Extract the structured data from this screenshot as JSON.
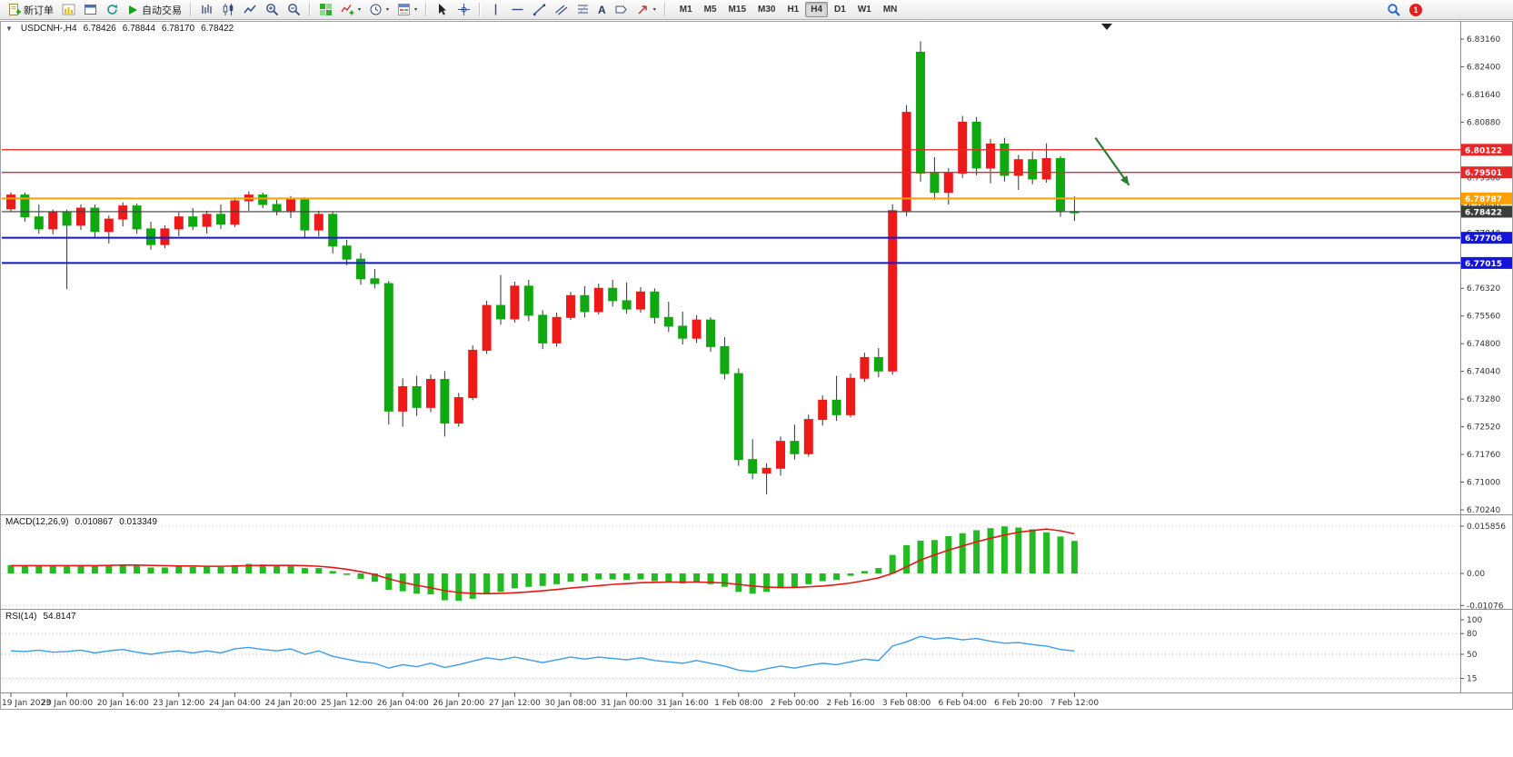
{
  "toolbar": {
    "new_order_label": "新订单",
    "auto_trading_label": "自动交易",
    "timeframes": [
      "M1",
      "M5",
      "M15",
      "M30",
      "H1",
      "H4",
      "D1",
      "W1",
      "MN"
    ],
    "active_timeframe": "H4",
    "notification_count": "1"
  },
  "icons": {
    "dropdown": "▾",
    "expander": "▼",
    "text_tool": "A"
  },
  "chart": {
    "title_symbol": "USDCNH-,H4",
    "open": "6.78426",
    "high": "6.78844",
    "low": "6.78170",
    "close": "6.78422"
  },
  "chart_data": {
    "type": "candlestick",
    "symbol": "USDCNH-",
    "timeframe": "H4",
    "x": {
      "step_bars": 4,
      "labels": [
        "19 Jan 2023",
        "20 Jan 00:00",
        "20 Jan 16:00",
        "23 Jan 12:00",
        "24 Jan 04:00",
        "24 Jan 20:00",
        "25 Jan 12:00",
        "26 Jan 04:00",
        "26 Jan 20:00",
        "27 Jan 12:00",
        "30 Jan 08:00",
        "31 Jan 00:00",
        "31 Jan 16:00",
        "1 Feb 08:00",
        "2 Feb 00:00",
        "2 Feb 16:00",
        "3 Feb 08:00",
        "6 Feb 04:00",
        "6 Feb 20:00",
        "7 Feb 12:00"
      ]
    },
    "main": {
      "price_min": 6.7024,
      "price_max": 6.8316,
      "tick_step": 0.0076,
      "tick_labels": [
        "6.83160",
        "6.82400",
        "6.81640",
        "6.80880",
        "6.80120",
        "6.79360",
        "6.78600",
        "6.77840",
        "6.77080",
        "6.76320",
        "6.75560",
        "6.74800",
        "6.74040",
        "6.73280",
        "6.72520",
        "6.71760",
        "6.71000",
        "6.70240"
      ],
      "up_color": "#ee1a1a",
      "down_color": "#10a810",
      "candles": [
        [
          6.785,
          6.7895,
          6.7842,
          6.7888
        ],
        [
          6.7888,
          6.7895,
          6.7815,
          6.7828
        ],
        [
          6.7828,
          6.7862,
          6.7782,
          6.7795
        ],
        [
          6.7795,
          6.7848,
          6.778,
          6.784
        ],
        [
          6.784,
          6.7848,
          6.763,
          6.7805
        ],
        [
          6.7805,
          6.7862,
          6.7792,
          6.7852
        ],
        [
          6.7852,
          6.7862,
          6.7772,
          6.7788
        ],
        [
          6.7788,
          6.7832,
          6.7755,
          6.7822
        ],
        [
          6.7822,
          6.7868,
          6.7802,
          6.7858
        ],
        [
          6.7858,
          6.7865,
          6.7782,
          6.7795
        ],
        [
          6.7795,
          6.7815,
          6.7738,
          6.7752
        ],
        [
          6.7752,
          6.7805,
          6.7742,
          6.7795
        ],
        [
          6.7795,
          6.784,
          6.7775,
          6.7828
        ],
        [
          6.7828,
          6.7852,
          6.7792,
          6.7802
        ],
        [
          6.7802,
          6.7845,
          6.7782,
          6.7835
        ],
        [
          6.7835,
          6.7862,
          6.7795,
          6.7808
        ],
        [
          6.7808,
          6.7882,
          6.78,
          6.7872
        ],
        [
          6.7872,
          6.7898,
          6.7845,
          6.7888
        ],
        [
          6.7888,
          6.7895,
          6.7852,
          6.7862
        ],
        [
          6.7862,
          6.7875,
          6.7832,
          6.7845
        ],
        [
          6.7845,
          6.7885,
          6.7825,
          6.7875
        ],
        [
          6.7875,
          6.7882,
          6.7772,
          6.7792
        ],
        [
          6.7792,
          6.7845,
          6.7775,
          6.7835
        ],
        [
          6.7835,
          6.7842,
          6.7728,
          6.7748
        ],
        [
          6.7748,
          6.7765,
          6.7695,
          6.7712
        ],
        [
          6.7712,
          6.7728,
          6.7642,
          6.7658
        ],
        [
          6.7658,
          6.7685,
          6.7632,
          6.7645
        ],
        [
          6.7645,
          6.7652,
          6.7258,
          6.7295
        ],
        [
          6.7295,
          6.7385,
          6.7252,
          6.7362
        ],
        [
          6.7362,
          6.7392,
          6.7282,
          6.7305
        ],
        [
          6.7305,
          6.7395,
          6.7292,
          6.7382
        ],
        [
          6.7382,
          6.7405,
          6.7225,
          6.7262
        ],
        [
          6.7262,
          6.7345,
          6.7252,
          6.7332
        ],
        [
          6.7332,
          6.7475,
          6.7325,
          6.7462
        ],
        [
          6.7462,
          6.7598,
          6.7452,
          6.7585
        ],
        [
          6.7585,
          6.7668,
          6.7532,
          6.7548
        ],
        [
          6.7548,
          6.765,
          6.7538,
          6.7638
        ],
        [
          6.7638,
          6.7655,
          6.7542,
          6.7558
        ],
        [
          6.7558,
          6.7572,
          6.7465,
          6.7482
        ],
        [
          6.7482,
          6.7565,
          6.7472,
          6.7552
        ],
        [
          6.7552,
          6.7622,
          6.7545,
          6.7612
        ],
        [
          6.7612,
          6.7638,
          6.7552,
          6.7568
        ],
        [
          6.7568,
          6.7645,
          6.756,
          6.7632
        ],
        [
          6.7632,
          6.7655,
          6.7582,
          6.7598
        ],
        [
          6.7598,
          6.7648,
          6.7562,
          6.7575
        ],
        [
          6.7575,
          6.7635,
          6.7565,
          6.7622
        ],
        [
          6.7622,
          6.7632,
          6.7535,
          6.7552
        ],
        [
          6.7552,
          6.7595,
          6.7512,
          6.7528
        ],
        [
          6.7528,
          6.7568,
          6.7478,
          6.7495
        ],
        [
          6.7495,
          6.7558,
          6.7482,
          6.7545
        ],
        [
          6.7545,
          6.7552,
          6.7458,
          6.7472
        ],
        [
          6.7472,
          6.7498,
          6.7382,
          6.7398
        ],
        [
          6.7398,
          6.7412,
          6.7145,
          6.7162
        ],
        [
          6.7162,
          6.7218,
          6.7108,
          6.7125
        ],
        [
          6.7125,
          6.7152,
          6.7066,
          6.7138
        ],
        [
          6.7138,
          6.7225,
          6.7118,
          6.7212
        ],
        [
          6.7212,
          6.7258,
          6.7162,
          6.7178
        ],
        [
          6.7178,
          6.7285,
          6.717,
          6.7272
        ],
        [
          6.7272,
          6.7338,
          6.7255,
          6.7325
        ],
        [
          6.7325,
          6.7392,
          6.7268,
          6.7285
        ],
        [
          6.7285,
          6.7398,
          6.7278,
          6.7385
        ],
        [
          6.7385,
          6.7455,
          6.7375,
          6.7442
        ],
        [
          6.7442,
          6.7468,
          6.7388,
          6.7405
        ],
        [
          6.7405,
          6.7862,
          6.7395,
          6.7845
        ],
        [
          6.7845,
          6.8135,
          6.783,
          6.8115
        ],
        [
          6.828,
          6.831,
          6.7925,
          6.7948
        ],
        [
          6.7948,
          6.7992,
          6.7875,
          6.7895
        ],
        [
          6.7895,
          6.7962,
          6.7862,
          6.7948
        ],
        [
          6.7948,
          6.8105,
          6.7935,
          6.8088
        ],
        [
          6.8088,
          6.8102,
          6.7942,
          6.7962
        ],
        [
          6.7962,
          6.8042,
          6.792,
          6.8028
        ],
        [
          6.8028,
          6.8045,
          6.7925,
          6.7942
        ],
        [
          6.7942,
          6.7998,
          6.7902,
          6.7985
        ],
        [
          6.7985,
          6.8008,
          6.7918,
          6.7932
        ],
        [
          6.7932,
          6.803,
          6.7922,
          6.7988
        ],
        [
          6.7988,
          6.7995,
          6.7828,
          6.7845
        ],
        [
          6.78426,
          6.78844,
          6.7817,
          6.78422
        ]
      ],
      "levels": [
        {
          "value": "6.80122",
          "price": 6.80122,
          "color": "#e82828",
          "width": 1.3
        },
        {
          "value": "6.79501",
          "price": 6.79501,
          "color": "#e82828",
          "width": 1.3
        },
        {
          "value": "6.78787",
          "price": 6.78787,
          "color": "#ff9f00",
          "width": 2
        },
        {
          "value": "6.78422",
          "price": 6.78422,
          "color": "#3c3c3c",
          "width": 1.1
        },
        {
          "value": "6.77706",
          "price": 6.77706,
          "color": "#1414dc",
          "width": 2
        },
        {
          "value": "6.77015",
          "price": 6.77015,
          "color": "#1414dc",
          "width": 2
        }
      ],
      "arrow": {
        "from": {
          "bar": 77.5,
          "price": 6.8045
        },
        "to": {
          "bar": 79.9,
          "price": 6.7915
        },
        "color": "#2f7d32"
      }
    },
    "macd": {
      "label": "MACD(12,26,9)",
      "value_main": "0.010867",
      "value_signal": "0.013349",
      "scale_max": 0.015856,
      "histogram_color": "#22bb22",
      "signal_color": "#e81717",
      "axis": [
        {
          "label": "0.015856",
          "value": 0.015856
        },
        {
          "label": "0.00",
          "value": 0
        },
        {
          "label": "-0.01076",
          "value": -0.01076
        }
      ],
      "histogram": [
        0.0028,
        0.0026,
        0.0025,
        0.0027,
        0.0024,
        0.0028,
        0.0025,
        0.0027,
        0.003,
        0.0026,
        0.002,
        0.002,
        0.0023,
        0.0022,
        0.0024,
        0.0022,
        0.0028,
        0.0032,
        0.003,
        0.0026,
        0.0028,
        0.0018,
        0.0018,
        0.0008,
        -0.0005,
        -0.0018,
        -0.0028,
        -0.0055,
        -0.006,
        -0.0068,
        -0.007,
        -0.009,
        -0.0092,
        -0.0085,
        -0.007,
        -0.0062,
        -0.005,
        -0.0045,
        -0.0042,
        -0.0036,
        -0.0028,
        -0.0026,
        -0.002,
        -0.002,
        -0.0022,
        -0.002,
        -0.0026,
        -0.003,
        -0.0034,
        -0.003,
        -0.0036,
        -0.0045,
        -0.0062,
        -0.0068,
        -0.0062,
        -0.005,
        -0.0046,
        -0.0036,
        -0.0026,
        -0.0022,
        -0.0008,
        0.0008,
        0.0018,
        0.0062,
        0.0095,
        0.011,
        0.0112,
        0.0125,
        0.0135,
        0.0145,
        0.0152,
        0.0158,
        0.0154,
        0.0148,
        0.0138,
        0.0124,
        0.0109
      ],
      "signal": [
        0.0026,
        0.0026,
        0.0026,
        0.0026,
        0.0026,
        0.0026,
        0.0026,
        0.0027,
        0.0028,
        0.0028,
        0.0027,
        0.0026,
        0.0025,
        0.0025,
        0.0024,
        0.0024,
        0.0025,
        0.0026,
        0.0027,
        0.0027,
        0.0027,
        0.0026,
        0.0024,
        0.002,
        0.0014,
        0.0006,
        -0.0004,
        -0.0018,
        -0.003,
        -0.004,
        -0.0048,
        -0.0058,
        -0.0064,
        -0.0067,
        -0.0068,
        -0.0067,
        -0.0065,
        -0.0062,
        -0.0058,
        -0.0054,
        -0.0049,
        -0.0045,
        -0.0041,
        -0.0037,
        -0.0034,
        -0.0031,
        -0.003,
        -0.0029,
        -0.0029,
        -0.0029,
        -0.003,
        -0.0032,
        -0.0037,
        -0.0042,
        -0.0046,
        -0.0047,
        -0.0047,
        -0.0045,
        -0.0042,
        -0.0038,
        -0.0032,
        -0.0024,
        -0.0015,
        0.0,
        0.0022,
        0.0045,
        0.0062,
        0.0078,
        0.0092,
        0.0106,
        0.0118,
        0.0129,
        0.0138,
        0.0144,
        0.0149,
        0.0143,
        0.0133
      ]
    },
    "rsi": {
      "label": "RSI(14)",
      "value": "54.8147",
      "color": "#3c9ce8",
      "axis": [
        {
          "label": "100",
          "value": 100
        },
        {
          "label": "80",
          "value": 80
        },
        {
          "label": "50",
          "value": 50
        },
        {
          "label": "15",
          "value": 15
        }
      ],
      "values": [
        55,
        54,
        56,
        53,
        54,
        56,
        52,
        55,
        57,
        53,
        50,
        53,
        55,
        52,
        55,
        52,
        58,
        60,
        57,
        55,
        58,
        50,
        55,
        47,
        43,
        39,
        37,
        30,
        35,
        32,
        37,
        31,
        35,
        40,
        45,
        42,
        46,
        42,
        38,
        42,
        46,
        43,
        46,
        44,
        42,
        45,
        41,
        39,
        37,
        41,
        37,
        33,
        27,
        25,
        29,
        33,
        30,
        34,
        37,
        35,
        39,
        43,
        41,
        62,
        68,
        76,
        72,
        74,
        71,
        73,
        69,
        66,
        67,
        64,
        62,
        57,
        54.8
      ]
    }
  }
}
